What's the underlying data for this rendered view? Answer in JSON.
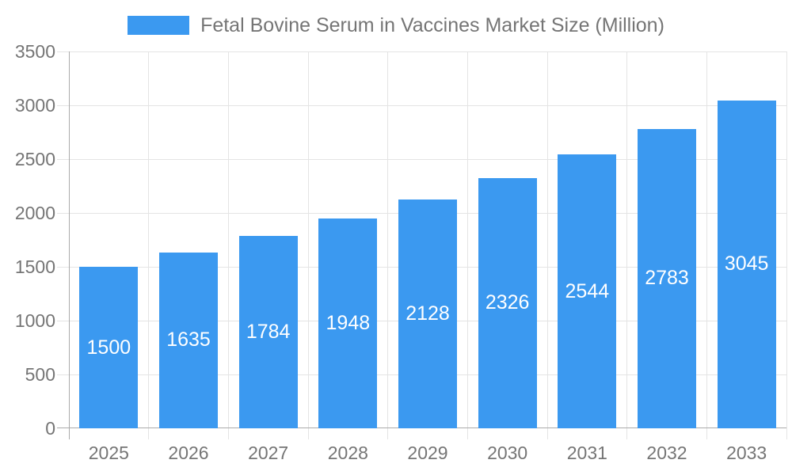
{
  "chart_data": {
    "type": "bar",
    "title": "Fetal Bovine Serum in Vaccines Market Size (Million)",
    "legend": {
      "label": "Fetal Bovine Serum in Vaccines Market Size (Million)",
      "position": "top"
    },
    "categories": [
      "2025",
      "2026",
      "2027",
      "2028",
      "2029",
      "2030",
      "2031",
      "2032",
      "2033"
    ],
    "values": [
      1500,
      1635,
      1784,
      1948,
      2128,
      2326,
      2544,
      2783,
      3045
    ],
    "xlabel": "",
    "ylabel": "",
    "ylim": [
      0,
      3500
    ],
    "yticks": [
      0,
      500,
      1000,
      1500,
      2000,
      2500,
      3000,
      3500
    ],
    "grid": true,
    "value_labels": "inside-center"
  },
  "colors": {
    "bar": "#3b99f0",
    "grid": "#e4e4e4",
    "axis": "#ababab",
    "tick_label": "#757575",
    "legend_label": "#757575",
    "value_label": "#ffffff",
    "background": "#ffffff"
  }
}
